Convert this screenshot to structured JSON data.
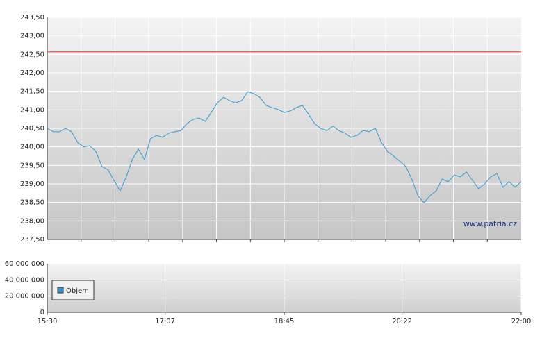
{
  "chart_data": [
    {
      "type": "line",
      "x": [
        "15:30",
        "15:35",
        "15:40",
        "15:45",
        "15:50",
        "15:55",
        "16:00",
        "16:05",
        "16:10",
        "16:15",
        "16:20",
        "16:25",
        "16:30",
        "16:35",
        "16:40",
        "16:45",
        "16:50",
        "16:55",
        "17:00",
        "17:05",
        "17:10",
        "17:15",
        "17:20",
        "17:25",
        "17:30",
        "17:35",
        "17:40",
        "17:45",
        "17:50",
        "17:55",
        "18:00",
        "18:05",
        "18:10",
        "18:15",
        "18:20",
        "18:25",
        "18:30",
        "18:35",
        "18:40",
        "18:45",
        "18:50",
        "18:55",
        "19:00",
        "19:05",
        "19:10",
        "19:15",
        "19:20",
        "19:25",
        "19:30",
        "19:35",
        "19:40",
        "19:45",
        "19:50",
        "19:55",
        "20:00",
        "20:05",
        "20:10",
        "20:15",
        "20:20",
        "20:25",
        "20:30",
        "20:35",
        "20:40",
        "20:45",
        "20:50",
        "20:55",
        "21:00",
        "21:05",
        "21:10",
        "21:15",
        "21:20",
        "21:25",
        "21:30",
        "21:35",
        "21:40",
        "21:45",
        "21:50",
        "21:55",
        "22:00"
      ],
      "series": [
        {
          "color": "#4aa3d0",
          "values": [
            240.5,
            240.41,
            240.41,
            240.5,
            240.41,
            240.12,
            240.0,
            240.03,
            239.88,
            239.47,
            239.38,
            239.09,
            238.81,
            239.19,
            239.66,
            239.94,
            239.66,
            240.22,
            240.31,
            240.26,
            240.37,
            240.41,
            240.44,
            240.63,
            240.74,
            240.78,
            240.69,
            240.93,
            241.19,
            241.34,
            241.25,
            241.19,
            241.25,
            241.49,
            241.44,
            241.34,
            241.12,
            241.06,
            241.01,
            240.93,
            240.97,
            241.06,
            241.12,
            240.88,
            240.63,
            240.5,
            240.44,
            240.56,
            240.44,
            240.37,
            240.26,
            240.31,
            240.44,
            240.41,
            240.5,
            240.12,
            239.88,
            239.75,
            239.62,
            239.47,
            239.13,
            238.68,
            238.49,
            238.68,
            238.81,
            239.13,
            239.06,
            239.24,
            239.19,
            239.32,
            239.09,
            238.87,
            239.0,
            239.19,
            239.28,
            238.91,
            239.06,
            238.91,
            239.06
          ]
        }
      ],
      "xlim": [
        "15:30",
        "22:00"
      ],
      "ylim": [
        237.5,
        243.5
      ],
      "yticks": [
        {
          "value": 237.5,
          "label": "237,50"
        },
        {
          "value": 238,
          "label": "238,00"
        },
        {
          "value": 238.5,
          "label": "238,50"
        },
        {
          "value": 239,
          "label": "239,00"
        },
        {
          "value": 239.5,
          "label": "239,50"
        },
        {
          "value": 240,
          "label": "240,00"
        },
        {
          "value": 240.5,
          "label": "240,50"
        },
        {
          "value": 241,
          "label": "241,00"
        },
        {
          "value": 241.5,
          "label": "241,50"
        },
        {
          "value": 242,
          "label": "242,00"
        },
        {
          "value": 242.5,
          "label": "242,50"
        },
        {
          "value": 243,
          "label": "243,00"
        },
        {
          "value": 243.5,
          "label": "243,50"
        }
      ],
      "reference_line": {
        "value": 242.57,
        "color": "#e06060"
      },
      "watermark": "www.patria.cz",
      "grid": true
    },
    {
      "type": "bar",
      "series": [
        {
          "name": "Objem",
          "color": "#3a8fc8"
        }
      ],
      "xlim": [
        "15:30",
        "22:00"
      ],
      "xticks": [
        "15:30",
        "17:07",
        "18:45",
        "20:22",
        "22:00"
      ],
      "ylim": [
        0,
        60000000
      ],
      "yticks": [
        0,
        {
          "value": 20000000,
          "label": "20 000 000"
        },
        {
          "value": 40000000,
          "label": "40 000 000"
        },
        {
          "value": 60000000,
          "label": "60 000 000"
        }
      ],
      "grid": true
    }
  ]
}
